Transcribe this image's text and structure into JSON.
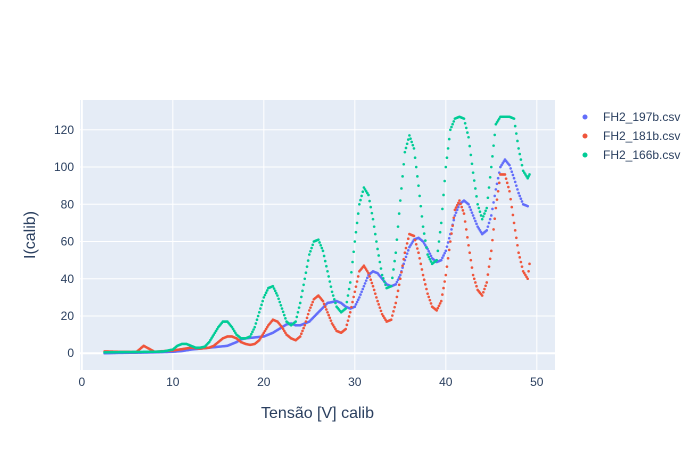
{
  "chart_data": {
    "type": "scatter",
    "xlabel": "Tensão [V] calib",
    "ylabel": "I(calib)",
    "xlim": [
      -0.2,
      52
    ],
    "ylim": [
      -9,
      136
    ],
    "xticks": [
      0,
      10,
      20,
      30,
      40,
      50
    ],
    "yticks": [
      0,
      20,
      40,
      60,
      80,
      100,
      120
    ],
    "grid": true,
    "legend_position": "top-right",
    "colors": {
      "plot_bg": "#e5ecf6",
      "grid": "#ffffff",
      "text": "#2a3f5f"
    },
    "series": [
      {
        "name": "FH2_197b.csv",
        "color": "#636efa",
        "points": [
          [
            2.5,
            0
          ],
          [
            4,
            0.2
          ],
          [
            6,
            0.3
          ],
          [
            8,
            0.5
          ],
          [
            10,
            0.8
          ],
          [
            11,
            1.2
          ],
          [
            12,
            2
          ],
          [
            13,
            2.5
          ],
          [
            14,
            3
          ],
          [
            15,
            3.5
          ],
          [
            16,
            4
          ],
          [
            16.5,
            5
          ],
          [
            17,
            6
          ],
          [
            17.5,
            7.5
          ],
          [
            18,
            8
          ],
          [
            19,
            8.5
          ],
          [
            20,
            9
          ],
          [
            21,
            11
          ],
          [
            22,
            14
          ],
          [
            22.5,
            15.5
          ],
          [
            23,
            16
          ],
          [
            23.5,
            15
          ],
          [
            24,
            15
          ],
          [
            25,
            17
          ],
          [
            26,
            22
          ],
          [
            27,
            27
          ],
          [
            28,
            28
          ],
          [
            28.5,
            27
          ],
          [
            29,
            25
          ],
          [
            29.5,
            24
          ],
          [
            30,
            25
          ],
          [
            30.5,
            30
          ],
          [
            31,
            36
          ],
          [
            31.5,
            42
          ],
          [
            32,
            44
          ],
          [
            32.5,
            43
          ],
          [
            33,
            40
          ],
          [
            33.5,
            37
          ],
          [
            34,
            36
          ],
          [
            34.5,
            37
          ],
          [
            35,
            42
          ],
          [
            35.5,
            50
          ],
          [
            36,
            57
          ],
          [
            36.5,
            61
          ],
          [
            37,
            62
          ],
          [
            37.5,
            60
          ],
          [
            38,
            56
          ],
          [
            38.5,
            51
          ],
          [
            39,
            49
          ],
          [
            39.5,
            50
          ],
          [
            40,
            55
          ],
          [
            40.5,
            64
          ],
          [
            41,
            74
          ],
          [
            41.5,
            80
          ],
          [
            42,
            82
          ],
          [
            42.5,
            80
          ],
          [
            43,
            74
          ],
          [
            43.5,
            68
          ],
          [
            44,
            64
          ],
          [
            44.5,
            66
          ],
          [
            45,
            74
          ],
          [
            45.5,
            88
          ],
          [
            46,
            100
          ],
          [
            46.5,
            104
          ],
          [
            47,
            101
          ],
          [
            47.5,
            94
          ],
          [
            48,
            86
          ],
          [
            48.5,
            80
          ],
          [
            49,
            79
          ]
        ]
      },
      {
        "name": "FH2_181b.csv",
        "color": "#ef553b",
        "points": [
          [
            2.5,
            1
          ],
          [
            4,
            0.8
          ],
          [
            6,
            0.7
          ],
          [
            6.8,
            4
          ],
          [
            8,
            0.8
          ],
          [
            10,
            1.5
          ],
          [
            11,
            2.2
          ],
          [
            12,
            3
          ],
          [
            13,
            2.5
          ],
          [
            14,
            3
          ],
          [
            14.5,
            4
          ],
          [
            15,
            6
          ],
          [
            15.5,
            8
          ],
          [
            16,
            9
          ],
          [
            16.5,
            9
          ],
          [
            17,
            8
          ],
          [
            17.5,
            6
          ],
          [
            18,
            5
          ],
          [
            18.5,
            4.5
          ],
          [
            19,
            5
          ],
          [
            19.5,
            7
          ],
          [
            20,
            11
          ],
          [
            20.5,
            15
          ],
          [
            21,
            18
          ],
          [
            21.5,
            17
          ],
          [
            22,
            14
          ],
          [
            22.5,
            10
          ],
          [
            23,
            8
          ],
          [
            23.5,
            7
          ],
          [
            24,
            9
          ],
          [
            24.5,
            15
          ],
          [
            25,
            23
          ],
          [
            25.5,
            29
          ],
          [
            26,
            31
          ],
          [
            26.5,
            28
          ],
          [
            27,
            22
          ],
          [
            27.5,
            16
          ],
          [
            28,
            12
          ],
          [
            28.5,
            11
          ],
          [
            29,
            13
          ],
          [
            29.5,
            22
          ],
          [
            30,
            33
          ],
          [
            30.5,
            44
          ],
          [
            31,
            47
          ],
          [
            31.5,
            43
          ],
          [
            32,
            36
          ],
          [
            32.5,
            28
          ],
          [
            33,
            21
          ],
          [
            33.5,
            17
          ],
          [
            34,
            18
          ],
          [
            34.5,
            27
          ],
          [
            35,
            40
          ],
          [
            35.5,
            54
          ],
          [
            36,
            64
          ],
          [
            36.5,
            63
          ],
          [
            37,
            54
          ],
          [
            37.5,
            42
          ],
          [
            38,
            32
          ],
          [
            38.5,
            25
          ],
          [
            39,
            23
          ],
          [
            39.5,
            28
          ],
          [
            40,
            42
          ],
          [
            40.5,
            60
          ],
          [
            41,
            77
          ],
          [
            41.5,
            82
          ],
          [
            42,
            75
          ],
          [
            42.5,
            58
          ],
          [
            43,
            42
          ],
          [
            43.5,
            34
          ],
          [
            44,
            31
          ],
          [
            44.5,
            38
          ],
          [
            45,
            55
          ],
          [
            45.5,
            78
          ],
          [
            46,
            96
          ],
          [
            46.5,
            96
          ],
          [
            47,
            87
          ],
          [
            47.5,
            70
          ],
          [
            48,
            54
          ],
          [
            48.5,
            44
          ],
          [
            49,
            40
          ],
          [
            49.2,
            48
          ]
        ]
      },
      {
        "name": "FH2_166b.csv",
        "color": "#00cc96",
        "points": [
          [
            2.5,
            0.5
          ],
          [
            4,
            0.6
          ],
          [
            6,
            0.7
          ],
          [
            8,
            0.8
          ],
          [
            9,
            1
          ],
          [
            10,
            2
          ],
          [
            10.5,
            4
          ],
          [
            11,
            5
          ],
          [
            11.5,
            5
          ],
          [
            12,
            4
          ],
          [
            12.5,
            3
          ],
          [
            13,
            3
          ],
          [
            13.5,
            3.5
          ],
          [
            14,
            6
          ],
          [
            14.5,
            10
          ],
          [
            15,
            14
          ],
          [
            15.5,
            17
          ],
          [
            16,
            17
          ],
          [
            16.5,
            14
          ],
          [
            17,
            10
          ],
          [
            17.5,
            8
          ],
          [
            18,
            8
          ],
          [
            18.5,
            9
          ],
          [
            19,
            14
          ],
          [
            19.5,
            22
          ],
          [
            20,
            30
          ],
          [
            20.5,
            35
          ],
          [
            21,
            36
          ],
          [
            21.5,
            31
          ],
          [
            22,
            24
          ],
          [
            22.5,
            17
          ],
          [
            23,
            15
          ],
          [
            23.5,
            17
          ],
          [
            24,
            27
          ],
          [
            24.5,
            40
          ],
          [
            25,
            53
          ],
          [
            25.5,
            60
          ],
          [
            26,
            61
          ],
          [
            26.5,
            55
          ],
          [
            27,
            44
          ],
          [
            27.5,
            33
          ],
          [
            28,
            25
          ],
          [
            28.5,
            22
          ],
          [
            29,
            24
          ],
          [
            29.5,
            38
          ],
          [
            30,
            60
          ],
          [
            30.5,
            80
          ],
          [
            31,
            89
          ],
          [
            31.5,
            85
          ],
          [
            32,
            72
          ],
          [
            32.5,
            56
          ],
          [
            33,
            42
          ],
          [
            33.5,
            35
          ],
          [
            34,
            36
          ],
          [
            34.5,
            54
          ],
          [
            35,
            82
          ],
          [
            35.5,
            108
          ],
          [
            36,
            117
          ],
          [
            36.5,
            110
          ],
          [
            37,
            90
          ],
          [
            37.5,
            68
          ],
          [
            38,
            53
          ],
          [
            38.5,
            48
          ],
          [
            39,
            50
          ],
          [
            39.5,
            70
          ],
          [
            40,
            100
          ],
          [
            40.5,
            120
          ],
          [
            41,
            126
          ],
          [
            41.5,
            127
          ],
          [
            42,
            126
          ],
          [
            42.5,
            116
          ],
          [
            43,
            97
          ],
          [
            43.5,
            80
          ],
          [
            44,
            72
          ],
          [
            44.5,
            78
          ],
          [
            45,
            100
          ],
          [
            45.5,
            123
          ],
          [
            46,
            127
          ],
          [
            46.5,
            127
          ],
          [
            47,
            127
          ],
          [
            47.5,
            126
          ],
          [
            48,
            110
          ],
          [
            48.5,
            98
          ],
          [
            49,
            94
          ],
          [
            49.2,
            96
          ]
        ]
      }
    ]
  }
}
